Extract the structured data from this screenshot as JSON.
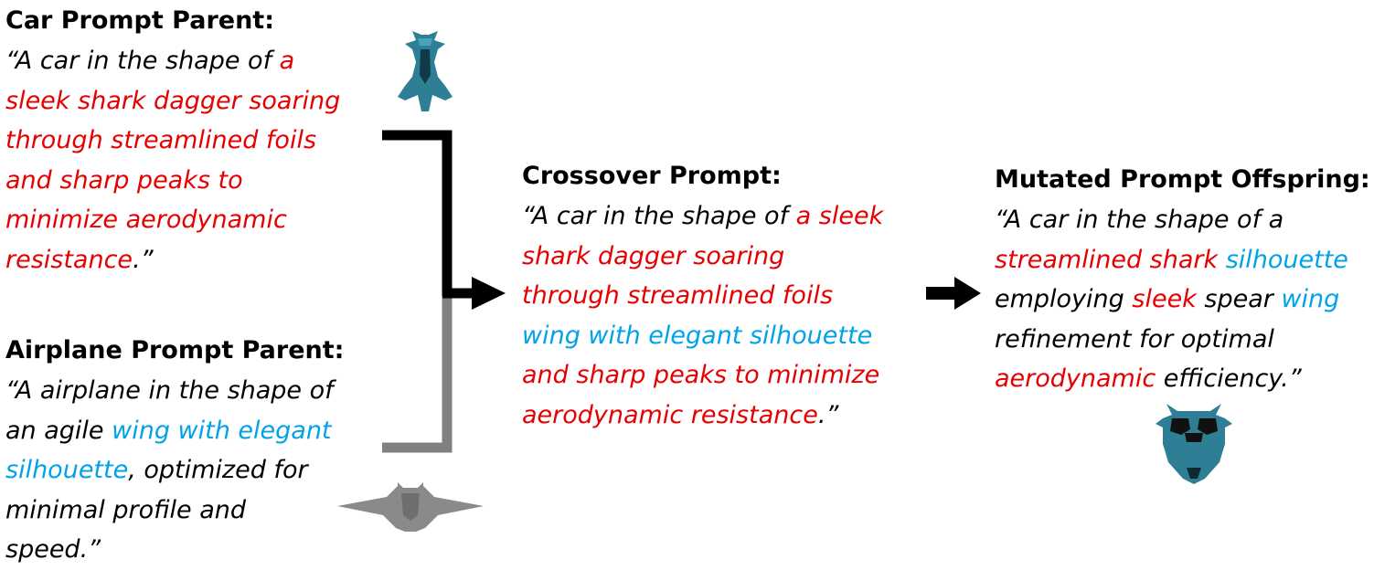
{
  "colors": {
    "black": "#000000",
    "red": "#e60000",
    "blue": "#00a2e8",
    "gray": "#808080",
    "shape_teal": "#2e7f95"
  },
  "car_parent": {
    "title": "Car Prompt Parent:",
    "lines": [
      [
        {
          "t": "“A car in the shape of ",
          "c": "k"
        },
        {
          "t": "a",
          "c": "r"
        }
      ],
      [
        {
          "t": "sleek shark dagger soaring",
          "c": "r"
        }
      ],
      [
        {
          "t": "through streamlined foils",
          "c": "r"
        }
      ],
      [
        {
          "t": "and sharp peaks to",
          "c": "r"
        }
      ],
      [
        {
          "t": "minimize aerodynamic",
          "c": "r"
        }
      ],
      [
        {
          "t": "resistance",
          "c": "r"
        },
        {
          "t": ".”",
          "c": "k"
        }
      ]
    ]
  },
  "airplane_parent": {
    "title": "Airplane Prompt Parent:",
    "lines": [
      [
        {
          "t": "“A airplane in the shape of",
          "c": "k"
        }
      ],
      [
        {
          "t": "an agile ",
          "c": "k"
        },
        {
          "t": "wing with elegant",
          "c": "b"
        }
      ],
      [
        {
          "t": "silhouette",
          "c": "b"
        },
        {
          "t": ", optimized for",
          "c": "k"
        }
      ],
      [
        {
          "t": "minimal profile and",
          "c": "k"
        }
      ],
      [
        {
          "t": "speed.”",
          "c": "k"
        }
      ]
    ]
  },
  "crossover": {
    "title": "Crossover Prompt:",
    "lines": [
      [
        {
          "t": "“A car in the shape of ",
          "c": "k"
        },
        {
          "t": "a sleek",
          "c": "r"
        }
      ],
      [
        {
          "t": "shark dagger soaring",
          "c": "r"
        }
      ],
      [
        {
          "t": "through streamlined foils",
          "c": "r"
        }
      ],
      [
        {
          "t": "wing with elegant silhouette",
          "c": "b"
        }
      ],
      [
        {
          "t": "and sharp peaks to minimize",
          "c": "r"
        }
      ],
      [
        {
          "t": "aerodynamic resistance",
          "c": "r"
        },
        {
          "t": ".”",
          "c": "k"
        }
      ]
    ]
  },
  "mutated": {
    "title": "Mutated Prompt Offspring:",
    "lines": [
      [
        {
          "t": "“A car in the shape of a",
          "c": "k"
        }
      ],
      [
        {
          "t": "streamlined shark ",
          "c": "r"
        },
        {
          "t": "silhouette",
          "c": "b"
        }
      ],
      [
        {
          "t": "employing ",
          "c": "k"
        },
        {
          "t": "sleek",
          "c": "r"
        },
        {
          "t": " spear ",
          "c": "k"
        },
        {
          "t": "wing",
          "c": "b"
        }
      ],
      [
        {
          "t": "refinement for optimal",
          "c": "k"
        }
      ],
      [
        {
          "t": "aerodynamic",
          "c": "r"
        },
        {
          "t": " efficiency.”",
          "c": "k"
        }
      ]
    ]
  }
}
